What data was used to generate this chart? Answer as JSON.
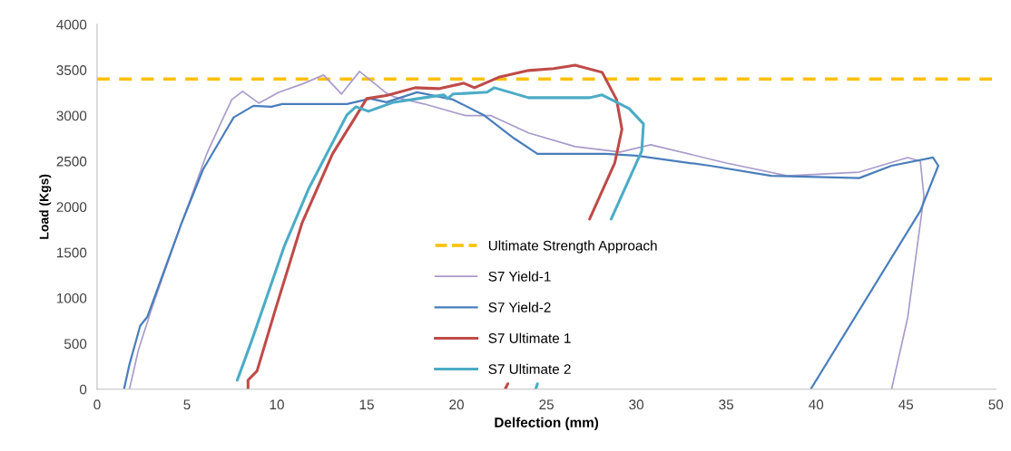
{
  "chart_data": {
    "type": "line",
    "xlabel": "Delfection (mm)",
    "ylabel": "Load (Kgs)",
    "xlim": [
      0,
      50
    ],
    "ylim": [
      0,
      4000
    ],
    "xticks": [
      0,
      5,
      10,
      15,
      20,
      25,
      30,
      35,
      40,
      45,
      50
    ],
    "yticks": [
      0,
      500,
      1000,
      1500,
      2000,
      2500,
      3000,
      3500,
      4000
    ],
    "grid": false,
    "legend": "bottom",
    "marker": "none",
    "line_style": "solid",
    "ref_lines": [
      {
        "axis": "y",
        "value": 3400,
        "label": "Ultimate Strength Approach",
        "color": "#ffc000",
        "line_style": "dashed"
      }
    ],
    "series": [
      {
        "name": "S7 Yield-1",
        "color": "#a99bcb",
        "x": [
          1.8,
          2.3,
          3.0,
          4.7,
          6.1,
          7.1,
          7.5,
          8.1,
          9.0,
          10.1,
          11.4,
          12.6,
          13.6,
          14.6,
          16.1,
          16.5,
          18.2,
          20.5,
          21.9,
          24.0,
          26.6,
          29.1,
          30.8,
          35.0,
          38.4,
          42.4,
          45.1,
          45.8,
          46.0,
          45.1,
          44.2
        ],
        "values": [
          0,
          430,
          860,
          1820,
          2580,
          3010,
          3176,
          3265,
          3136,
          3255,
          3345,
          3444,
          3236,
          3484,
          3246,
          3206,
          3127,
          3000,
          3000,
          2810,
          2660,
          2600,
          2680,
          2480,
          2340,
          2380,
          2540,
          2500,
          2115,
          790,
          0
        ]
      },
      {
        "name": "S7 Yield-2",
        "color": "#4a7ebb",
        "x": [
          1.5,
          1.8,
          2.4,
          2.8,
          4.7,
          5.9,
          7.6,
          8.7,
          9.7,
          10.3,
          13.9,
          15.2,
          16.1,
          17.8,
          19.8,
          21.5,
          23.2,
          24.5,
          28.3,
          30.0,
          34.1,
          37.5,
          42.4,
          44.2,
          46.5,
          46.8,
          45.8,
          39.7
        ],
        "values": [
          0,
          270,
          695,
          795,
          1820,
          2410,
          2980,
          3107,
          3097,
          3127,
          3127,
          3186,
          3146,
          3255,
          3176,
          3007,
          2750,
          2580,
          2580,
          2560,
          2450,
          2340,
          2315,
          2450,
          2540,
          2450,
          1955,
          0
        ]
      },
      {
        "name": "S7 Ultimate 1",
        "color": "#be4b48",
        "x": [
          8.4,
          8.4,
          8.9,
          9.9,
          11.4,
          13.1,
          14.3,
          15.0,
          16.0,
          16.2,
          17.7,
          19.0,
          20.4,
          21.0,
          22.4,
          24.0,
          25.4,
          26.6,
          28.1,
          28.9,
          29.2,
          28.8,
          27.4,
          25.0,
          22.7,
          22.85
        ],
        "values": [
          0,
          100,
          200,
          860,
          1820,
          2580,
          2960,
          3186,
          3216,
          3225,
          3305,
          3295,
          3355,
          3305,
          3424,
          3494,
          3514,
          3553,
          3474,
          3176,
          2850,
          2480,
          1866,
          null,
          0,
          60
        ]
      },
      {
        "name": "S7 Ultimate 2",
        "color": "#4bacc6",
        "x": [
          7.8,
          8.6,
          10.4,
          11.8,
          13.9,
          14.4,
          15.1,
          16.5,
          18.2,
          19.3,
          19.5,
          19.8,
          21.7,
          22.1,
          24.0,
          27.4,
          28.1,
          29.6,
          30.4,
          30.3,
          28.6,
          26.0,
          24.4,
          24.5
        ],
        "values": [
          100,
          530,
          1560,
          2210,
          3007,
          3097,
          3047,
          3146,
          3196,
          3226,
          3186,
          3236,
          3256,
          3305,
          3196,
          3196,
          3226,
          3077,
          2908,
          2610,
          1866,
          null,
          0,
          60
        ]
      }
    ]
  }
}
